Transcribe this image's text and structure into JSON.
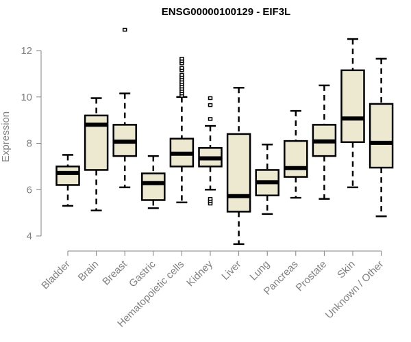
{
  "chart_data": {
    "type": "box",
    "title": "ENSG00000100129 - EIF3L",
    "xlabel": "",
    "ylabel": "Expression",
    "ylim": [
      4,
      12
    ],
    "yticks": [
      4,
      6,
      8,
      10,
      12
    ],
    "grid": false,
    "colors": {
      "box_fill": "#EDE8D0",
      "box_stroke": "#000000",
      "axis": "#808080"
    },
    "categories": [
      "Bladder",
      "Brain",
      "Breast",
      "Gastric",
      "Hematopoietic cells",
      "Kidney",
      "Liver",
      "Lung",
      "Pancreas",
      "Prostate",
      "Skin",
      "Unknown / Other"
    ],
    "boxes": [
      {
        "name": "Bladder",
        "whisker_low": 5.3,
        "q1": 6.2,
        "median": 6.72,
        "q3": 7.0,
        "whisker_high": 7.5,
        "outliers": []
      },
      {
        "name": "Brain",
        "whisker_low": 5.1,
        "q1": 6.85,
        "median": 8.8,
        "q3": 9.2,
        "whisker_high": 9.95,
        "outliers": []
      },
      {
        "name": "Breast",
        "whisker_low": 6.1,
        "q1": 7.45,
        "median": 8.07,
        "q3": 8.8,
        "whisker_high": 10.15,
        "outliers": [
          12.9
        ]
      },
      {
        "name": "Gastric",
        "whisker_low": 5.2,
        "q1": 5.55,
        "median": 6.28,
        "q3": 6.7,
        "whisker_high": 7.45,
        "outliers": []
      },
      {
        "name": "Hematopoietic cells",
        "whisker_low": 5.45,
        "q1": 7.0,
        "median": 7.55,
        "q3": 8.2,
        "whisker_high": 10.0,
        "outliers": [
          10.05,
          10.15,
          10.25,
          10.35,
          10.45,
          10.55,
          10.65,
          10.75,
          10.85,
          10.95,
          11.15,
          11.25,
          11.45,
          11.55,
          11.65
        ]
      },
      {
        "name": "Kidney",
        "whisker_low": 6.0,
        "q1": 7.0,
        "median": 7.35,
        "q3": 7.8,
        "whisker_high": 8.75,
        "outliers": [
          9.05,
          9.65,
          9.95,
          5.4,
          5.5,
          5.6
        ]
      },
      {
        "name": "Liver",
        "whisker_low": 3.65,
        "q1": 5.05,
        "median": 5.72,
        "q3": 8.4,
        "whisker_high": 10.4,
        "outliers": []
      },
      {
        "name": "Lung",
        "whisker_low": 4.95,
        "q1": 5.75,
        "median": 6.32,
        "q3": 6.85,
        "whisker_high": 7.95,
        "outliers": []
      },
      {
        "name": "Pancreas",
        "whisker_low": 5.65,
        "q1": 6.55,
        "median": 6.93,
        "q3": 8.1,
        "whisker_high": 9.4,
        "outliers": []
      },
      {
        "name": "Prostate",
        "whisker_low": 5.6,
        "q1": 7.45,
        "median": 8.08,
        "q3": 8.8,
        "whisker_high": 10.5,
        "outliers": []
      },
      {
        "name": "Skin",
        "whisker_low": 6.1,
        "q1": 8.05,
        "median": 9.07,
        "q3": 11.15,
        "whisker_high": 12.5,
        "outliers": []
      },
      {
        "name": "Unknown / Other",
        "whisker_low": 4.85,
        "q1": 6.95,
        "median": 8.02,
        "q3": 9.7,
        "whisker_high": 11.65,
        "outliers": []
      }
    ]
  }
}
